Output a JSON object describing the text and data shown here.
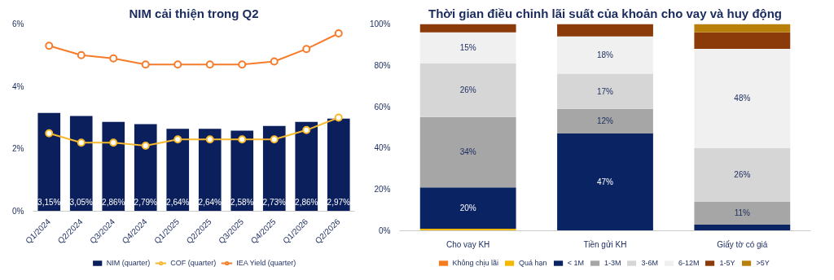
{
  "chart_data": [
    {
      "type": "bar",
      "title": "NIM cải thiện trong Q2",
      "categories": [
        "Q1/2024",
        "Q2/2024",
        "Q3/2024",
        "Q4/2024",
        "Q1/2025",
        "Q2/2025",
        "Q3/2025",
        "Q4/2025",
        "Q1/2026",
        "Q2/2026"
      ],
      "series": [
        {
          "name": "NIM (quarter)",
          "type": "bar",
          "color": "#0a1f5c",
          "values": [
            3.15,
            3.05,
            2.86,
            2.79,
            2.64,
            2.64,
            2.58,
            2.73,
            2.86,
            2.97
          ],
          "value_labels": [
            "3,15%",
            "3,05%",
            "2,86%",
            "2,79%",
            "2,64%",
            "2,64%",
            "2,58%",
            "2,73%",
            "2,86%",
            "2,97%"
          ]
        },
        {
          "name": "COF (quarter)",
          "type": "line",
          "color": "#f5b82e",
          "values": [
            2.5,
            2.2,
            2.2,
            2.1,
            2.3,
            2.3,
            2.3,
            2.3,
            2.6,
            3.0
          ]
        },
        {
          "name": "IEA Yield (quarter)",
          "type": "line",
          "color": "#f57c2a",
          "values": [
            5.3,
            5.0,
            4.9,
            4.7,
            4.7,
            4.7,
            4.7,
            4.8,
            5.2,
            5.7
          ]
        }
      ],
      "ylim": [
        0,
        6
      ],
      "yticks": [
        {
          "value": 0,
          "label": "0%"
        },
        {
          "value": 2,
          "label": "2%"
        },
        {
          "value": 4,
          "label": "4%"
        },
        {
          "value": 6,
          "label": "6%"
        }
      ],
      "marker": "circle",
      "legend": "bottom"
    },
    {
      "type": "bar",
      "stacked": true,
      "title": "Thời gian điều chỉnh lãi suất của khoản cho vay và huy động",
      "categories": [
        "Cho vay KH",
        "Tiền gửi KH",
        "Giấy tờ có giá"
      ],
      "series": [
        {
          "name": "Không chịu lãi",
          "color": "#f47b20",
          "values": [
            0,
            0,
            0
          ]
        },
        {
          "name": "Quá hạn",
          "color": "#f5b800",
          "values": [
            1,
            0,
            0
          ]
        },
        {
          "name": "< 1M",
          "color": "#0a2463",
          "values": [
            20,
            47,
            3
          ],
          "value_labels": [
            "20%",
            "47%",
            null
          ]
        },
        {
          "name": "1-3M",
          "color": "#a6a6a6",
          "values": [
            34,
            12,
            11
          ],
          "value_labels": [
            "34%",
            "12%",
            "11%"
          ]
        },
        {
          "name": "3-6M",
          "color": "#d6d6d6",
          "values": [
            26,
            17,
            26
          ],
          "value_labels": [
            "26%",
            "17%",
            "26%"
          ]
        },
        {
          "name": "6-12M",
          "color": "#f0f0f0",
          "values": [
            15,
            18,
            48
          ],
          "value_labels": [
            "15%",
            "18%",
            "48%"
          ]
        },
        {
          "name": "1-5Y",
          "color": "#8b3a0a",
          "values": [
            4,
            6,
            8
          ]
        },
        {
          "name": ">5Y",
          "color": "#b8800b",
          "values": [
            0,
            0,
            4
          ]
        }
      ],
      "ylim": [
        0,
        100
      ],
      "yticks": [
        {
          "value": 0,
          "label": "0%"
        },
        {
          "value": 20,
          "label": "20%"
        },
        {
          "value": 40,
          "label": "40%"
        },
        {
          "value": 60,
          "label": "60%"
        },
        {
          "value": 80,
          "label": "80%"
        },
        {
          "value": 100,
          "label": "100%"
        }
      ],
      "legend": "bottom"
    }
  ]
}
